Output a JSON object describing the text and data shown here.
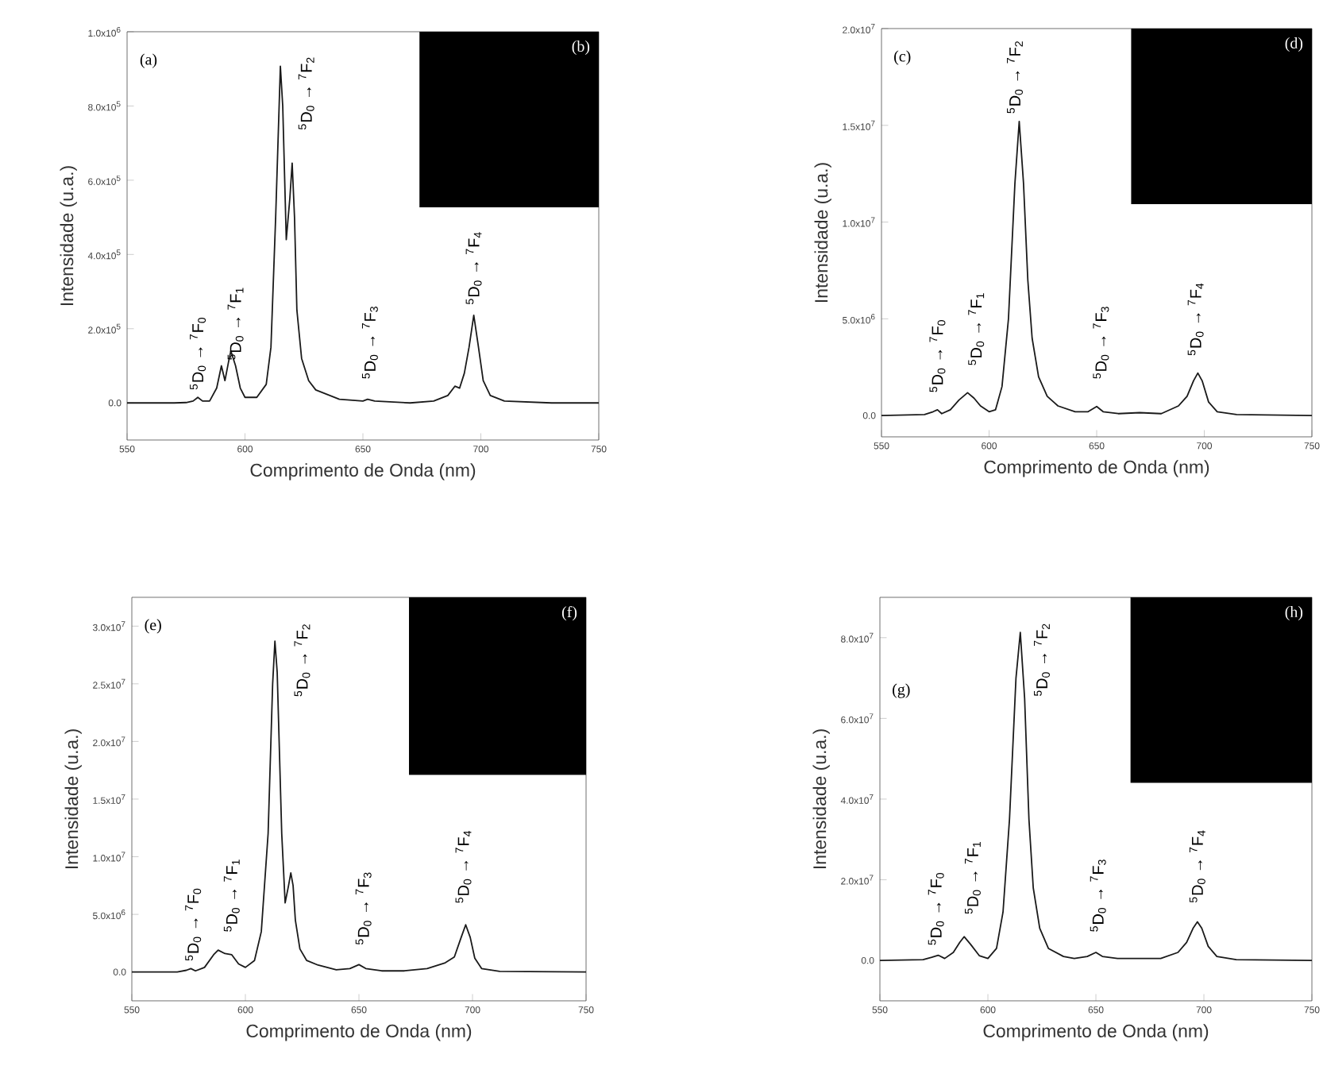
{
  "chart_data": [
    {
      "type": "line",
      "xlabel": "Comprimento de Onda (nm)",
      "ylabel": "Intensidade (u.a.)",
      "xlim": [
        550,
        750
      ],
      "ylim": [
        -100000.0,
        1000000.0
      ],
      "xticks": [
        550,
        600,
        650,
        700,
        750
      ],
      "yticks": [
        {
          "value": 0,
          "label": "0.0"
        },
        {
          "value": 200000.0,
          "label": "2.0x10$^{5}$"
        },
        {
          "value": 400000.0,
          "label": "4.0x10$^{5}$"
        },
        {
          "value": 600000.0,
          "label": "6.0x10$^{5}$"
        },
        {
          "value": 800000.0,
          "label": "8.0x10$^{5}$"
        },
        {
          "value": 1000000.0,
          "label": "1.0x10$^{6}$"
        }
      ],
      "x": [
        550,
        570,
        575,
        578,
        580,
        582,
        585,
        588,
        590,
        591.5,
        593,
        594,
        596,
        598,
        600,
        605,
        609,
        611,
        613,
        615,
        616,
        617.5,
        619,
        620,
        621,
        622,
        624,
        627,
        630,
        640,
        650,
        652,
        655,
        670,
        680,
        686,
        689,
        691,
        693,
        695,
        697,
        699,
        701,
        704,
        710,
        730,
        750
      ],
      "series": [
        {
          "color": "#1a1a1a",
          "values": [
            0,
            0,
            1000.0,
            5000.0,
            15000.0,
            5000.0,
            5000.0,
            40000.0,
            100000.0,
            60000.0,
            110000.0,
            140000.0,
            100000.0,
            40000.0,
            15000.0,
            15000.0,
            50000.0,
            150000.0,
            500000.0,
            907000.0,
            800000.0,
            440000.0,
            550000.0,
            646000.0,
            500000.0,
            250000.0,
            120000.0,
            60000.0,
            35000.0,
            10000.0,
            5000.0,
            10000.0,
            5000.0,
            0,
            5000.0,
            20000.0,
            45000.0,
            40000.0,
            80000.0,
            150000.0,
            236000.0,
            150000.0,
            60000.0,
            20000.0,
            5000.0,
            0,
            0
          ]
        }
      ],
      "annotations": [
        "(a)",
        "(b)",
        "$^{5}$D$_{0}$ → $^{7}$F$_{0}$",
        "$^{5}$D$_{0}$ → $^{7}$F$_{1}$",
        "$^{5}$D$_{0}$ → $^{7}$F$_{2}$",
        "$^{5}$D$_{0}$ → $^{7}$F$_{3}$",
        "$^{5}$D$_{0}$ → $^{7}$F$_{4}$"
      ]
    },
    {
      "type": "line",
      "xlabel": "Comprimento de Onda (nm)",
      "ylabel": "Intensidade (u.a.)",
      "xlim": [
        550,
        750
      ],
      "ylim": [
        -1100000.0,
        20000000.0
      ],
      "xticks": [
        550,
        600,
        650,
        700,
        750
      ],
      "yticks": [
        {
          "value": 0,
          "label": "0.0"
        },
        {
          "value": 5000000.0,
          "label": "5.0x10$^{6}$"
        },
        {
          "value": 10000000.0,
          "label": "1.0x10$^{7}$"
        },
        {
          "value": 15000000.0,
          "label": "1.5x10$^{7}$"
        },
        {
          "value": 20000000.0,
          "label": "2.0x10$^{7}$"
        }
      ],
      "x": [
        550,
        570,
        574,
        576,
        578,
        582,
        586,
        590,
        593,
        596,
        600,
        603,
        606,
        609,
        612,
        614,
        616,
        618,
        620,
        623,
        627,
        632,
        640,
        646,
        650,
        653,
        660,
        670,
        680,
        688,
        692,
        695,
        697,
        699,
        702,
        706,
        715,
        750
      ],
      "series": [
        {
          "color": "#1a1a1a",
          "values": [
            0,
            50000.0,
            200000.0,
            300000.0,
            100000.0,
            300000.0,
            800000.0,
            1180000.0,
            900000.0,
            500000.0,
            200000.0,
            300000.0,
            1500000.0,
            5000000.0,
            12000000.0,
            15200000.0,
            12000000.0,
            7000000.0,
            4000000.0,
            2000000.0,
            1000000.0,
            500000.0,
            200000.0,
            200000.0,
            470000.0,
            200000.0,
            100000.0,
            150000.0,
            100000.0,
            500000.0,
            1000000.0,
            1800000.0,
            2200000.0,
            1800000.0,
            700000.0,
            200000.0,
            50000.0,
            0
          ]
        }
      ],
      "annotations": [
        "(c)",
        "(d)",
        "$^{5}$D$_{0}$ → $^{7}$F$_{0}$",
        "$^{5}$D$_{0}$ → $^{7}$F$_{1}$",
        "$^{5}$D$_{0}$ → $^{7}$F$_{2}$",
        "$^{5}$D$_{0}$ → $^{7}$F$_{3}$",
        "$^{5}$D$_{0}$ → $^{7}$F$_{4}$"
      ]
    },
    {
      "type": "line",
      "xlabel": "Comprimento de Onda (nm)",
      "ylabel": "Intensidade (u.a.)",
      "xlim": [
        550,
        750
      ],
      "ylim": [
        -2500000.0,
        32500000.0
      ],
      "xticks": [
        550,
        600,
        650,
        700,
        750
      ],
      "yticks": [
        {
          "value": 0,
          "label": "0.0"
        },
        {
          "value": 5000000.0,
          "label": "5.0x10$^{6}$"
        },
        {
          "value": 10000000.0,
          "label": "1.0x10$^{7}$"
        },
        {
          "value": 15000000.0,
          "label": "1.5x10$^{7}$"
        },
        {
          "value": 20000000.0,
          "label": "2.0x10$^{7}$"
        },
        {
          "value": 25000000.0,
          "label": "2.5x10$^{7}$"
        },
        {
          "value": 30000000.0,
          "label": "3.0x10$^{7}$"
        }
      ],
      "x": [
        550,
        570,
        574,
        576,
        578,
        582,
        586,
        588,
        591,
        594,
        597,
        600,
        604,
        607,
        610,
        612,
        613,
        614,
        616,
        617.5,
        619,
        620,
        621,
        622,
        624,
        627,
        632,
        640,
        646,
        650,
        653,
        660,
        670,
        680,
        688,
        692,
        695,
        697,
        699,
        701,
        704,
        712,
        750
      ],
      "series": [
        {
          "color": "#1a1a1a",
          "values": [
            0,
            0,
            150000.0,
            300000.0,
            100000.0,
            400000.0,
            1500000.0,
            1900000.0,
            1600000.0,
            1500000.0,
            700000.0,
            400000.0,
            1000000.0,
            3500000.0,
            12000000.0,
            25000000.0,
            28700000.0,
            26000000.0,
            12000000.0,
            6000000.0,
            7500000.0,
            8600000.0,
            7500000.0,
            4500000.0,
            2000000.0,
            1000000.0,
            600000.0,
            200000.0,
            300000.0,
            640000.0,
            300000.0,
            100000.0,
            100000.0,
            300000.0,
            800000.0,
            1300000.0,
            3000000.0,
            4100000.0,
            3000000.0,
            1200000.0,
            300000.0,
            50000.0,
            0
          ]
        }
      ],
      "annotations": [
        "(e)",
        "(f)",
        "$^{5}$D$_{0}$ → $^{7}$F$_{0}$",
        "$^{5}$D$_{0}$ → $^{7}$F$_{1}$",
        "$^{5}$D$_{0}$ → $^{7}$F$_{2}$",
        "$^{5}$D$_{0}$ → $^{7}$F$_{3}$",
        "$^{5}$D$_{0}$ → $^{7}$F$_{4}$"
      ]
    },
    {
      "type": "line",
      "xlabel": "Comprimento de Onda (nm)",
      "ylabel": "Intensidade (u.a.)",
      "xlim": [
        550,
        750
      ],
      "ylim": [
        -10000000.0,
        90000000.0
      ],
      "xticks": [
        550,
        600,
        650,
        700,
        750
      ],
      "yticks": [
        {
          "value": 0,
          "label": "0.0"
        },
        {
          "value": 20000000.0,
          "label": "2.0x10$^{7}$"
        },
        {
          "value": 40000000.0,
          "label": "4.0x10$^{7}$"
        },
        {
          "value": 60000000.0,
          "label": "6.0x10$^{7}$"
        },
        {
          "value": 80000000.0,
          "label": "8.0x10$^{7}$"
        }
      ],
      "x": [
        550,
        570,
        574,
        577,
        580,
        584,
        587,
        589,
        592,
        596,
        600,
        604,
        607,
        610,
        613,
        615,
        617,
        619,
        621,
        624,
        628,
        635,
        640,
        646,
        650,
        653,
        660,
        670,
        680,
        688,
        692,
        695,
        697,
        699,
        702,
        706,
        715,
        750
      ],
      "series": [
        {
          "color": "#1a1a1a",
          "values": [
            0,
            200000.0,
            800000.0,
            1300000.0,
            500000.0,
            2000000.0,
            4500000.0,
            5900000.0,
            4000000.0,
            1200000.0,
            500000.0,
            3000000.0,
            12000000.0,
            35000000.0,
            70000000.0,
            81300000.0,
            65000000.0,
            35000000.0,
            18000000.0,
            8000000.0,
            3000000.0,
            1000000.0,
            500000.0,
            1000000.0,
            2000000.0,
            1000000.0,
            500000.0,
            500000.0,
            500000.0,
            2000000.0,
            4500000.0,
            8000000.0,
            9600000.0,
            8000000.0,
            3500000.0,
            1000000.0,
            200000.0,
            0
          ]
        }
      ],
      "annotations": [
        "(g)",
        "(h)",
        "$^{5}$D$_{0}$ → $^{7}$F$_{0}$",
        "$^{5}$D$_{0}$ → $^{7}$F$_{1}$",
        "$^{5}$D$_{0}$ → $^{7}$F$_{2}$",
        "$^{5}$D$_{0}$ → $^{7}$F$_{3}$",
        "$^{5}$D$_{0}$ → $^{7}$F$_{4}$"
      ]
    }
  ]
}
